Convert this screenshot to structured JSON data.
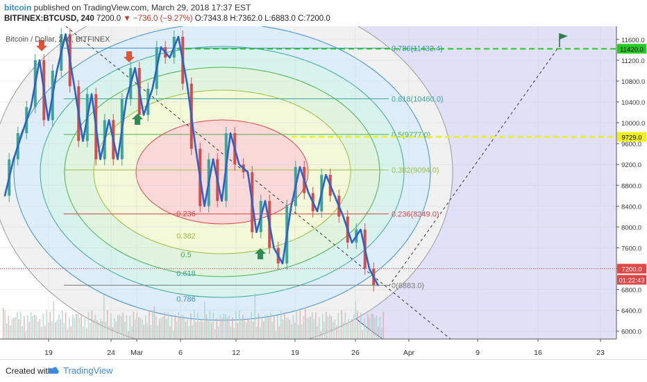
{
  "header": {
    "author": "bitcoin",
    "published_text": "published on TradingView.com, March 29, 2018 17:37 EST",
    "symbol": "BITFINEX:BTCUSD, 240",
    "last": "7200.0",
    "change": "−736.0 (−9.27%)",
    "ohlc": "O:7343.8 H:7362.0 L:6883.0 C:7200.0"
  },
  "footer": {
    "created_with": "Created with",
    "brand": "TradingView"
  },
  "chart_data": {
    "type": "line",
    "title": "Bitcoin / Dollar, 240, BITFINEX",
    "x_tick_labels": [
      "19",
      "24",
      "Mar",
      "6",
      "12",
      "19",
      "26",
      "Apr",
      "9",
      "16",
      "23"
    ],
    "y_ticks": [
      6000,
      6400,
      6800,
      7200,
      7600,
      8000,
      8400,
      8800,
      9200,
      9600,
      10000,
      10400,
      10800,
      11200,
      11600
    ],
    "y_tick_labels": [
      "6000.0",
      "6400.0",
      "6800.0",
      "7200.0",
      "7600.0",
      "8000.0",
      "8400.0",
      "8800.0",
      "9200.0",
      "9600.0",
      "10000.0",
      "10400.0",
      "10800.0",
      "11200.0",
      "11600.0"
    ],
    "ylim": [
      5850,
      11850
    ],
    "grid": true,
    "price_series": [
      {
        "x": 0,
        "y": 8600
      },
      {
        "x": 1,
        "y": 9300
      },
      {
        "x": 2,
        "y": 9800
      },
      {
        "x": 3,
        "y": 10300
      },
      {
        "x": 4,
        "y": 11200
      },
      {
        "x": 5,
        "y": 10050
      },
      {
        "x": 6,
        "y": 11000
      },
      {
        "x": 7,
        "y": 11700
      },
      {
        "x": 8,
        "y": 10700
      },
      {
        "x": 9,
        "y": 9650
      },
      {
        "x": 10,
        "y": 10550
      },
      {
        "x": 11,
        "y": 9300
      },
      {
        "x": 12,
        "y": 10050
      },
      {
        "x": 13,
        "y": 9300
      },
      {
        "x": 14,
        "y": 10450
      },
      {
        "x": 15,
        "y": 11050
      },
      {
        "x": 16,
        "y": 10150
      },
      {
        "x": 17,
        "y": 10650
      },
      {
        "x": 18,
        "y": 11450
      },
      {
        "x": 19,
        "y": 11250
      },
      {
        "x": 20,
        "y": 11650
      },
      {
        "x": 21,
        "y": 10750
      },
      {
        "x": 22,
        "y": 9500
      },
      {
        "x": 23,
        "y": 8400
      },
      {
        "x": 24,
        "y": 9300
      },
      {
        "x": 25,
        "y": 8500
      },
      {
        "x": 26,
        "y": 9800
      },
      {
        "x": 27,
        "y": 9200
      },
      {
        "x": 28,
        "y": 9050
      },
      {
        "x": 29,
        "y": 7900
      },
      {
        "x": 30,
        "y": 8500
      },
      {
        "x": 31,
        "y": 7600
      },
      {
        "x": 32,
        "y": 7300
      },
      {
        "x": 33,
        "y": 8400
      },
      {
        "x": 34,
        "y": 9150
      },
      {
        "x": 35,
        "y": 8650
      },
      {
        "x": 36,
        "y": 8300
      },
      {
        "x": 37,
        "y": 9000
      },
      {
        "x": 38,
        "y": 8600
      },
      {
        "x": 39,
        "y": 8200
      },
      {
        "x": 40,
        "y": 7700
      },
      {
        "x": 41,
        "y": 7950
      },
      {
        "x": 42,
        "y": 7200
      },
      {
        "x": 43,
        "y": 6883
      }
    ],
    "fib_levels": [
      {
        "ratio": 0.236,
        "value": 8249.0,
        "label": "0.236(8249.0)",
        "color": "#d64545"
      },
      {
        "ratio": 0.382,
        "value": 9094.0,
        "label": "0.382(9094.0)",
        "color": "#9bbf3a"
      },
      {
        "ratio": 0.5,
        "value": 9777.0,
        "label": "0.5(9777.0)",
        "color": "#48b04a"
      },
      {
        "ratio": 0.618,
        "value": 10460.0,
        "label": "0.618(10460.0)",
        "color": "#3aa79a"
      },
      {
        "ratio": 0.786,
        "value": 11432.4,
        "label": "0.786(11432.4)",
        "color": "#3b8fd0"
      },
      {
        "ratio": 0,
        "value": 6883.0,
        "label": "0(6883.0)",
        "color": "#777777"
      }
    ],
    "fib_circle_labels": [
      "0.236",
      "0.382",
      "0.5",
      "0.618",
      "0.786"
    ],
    "price_label_last": "7200.0",
    "countdown": "01:22:43",
    "target_price_label": "11420.0",
    "secondary_level_label": "9729.0",
    "colors": {
      "wave_line": "#2a62c9",
      "target_line": "#22cc22",
      "secondary_line": "#eeee22",
      "last_price": "#e04848",
      "bg_right": "#fbdada",
      "bg_fib": "#e0e0f7"
    }
  }
}
